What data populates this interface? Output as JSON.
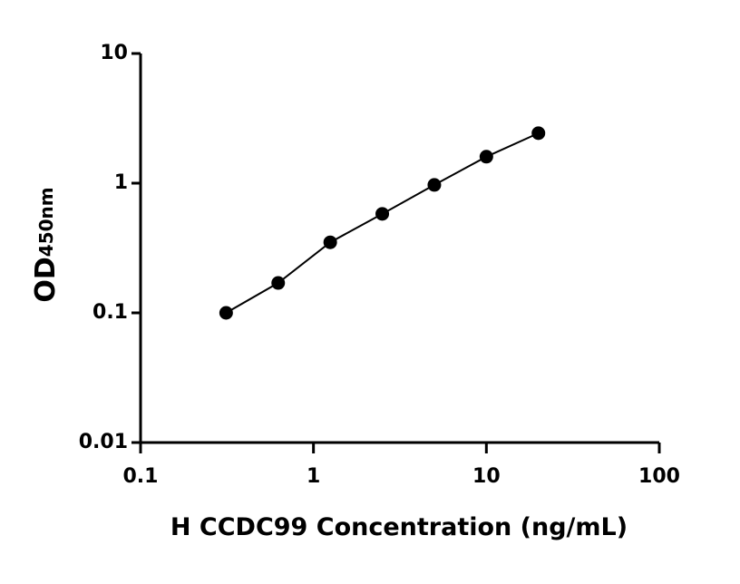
{
  "chart_data": {
    "type": "scatter",
    "x_label": "H CCDC99 Concentration (ng/mL)",
    "y_label": "OD",
    "y_label_sub": "450nm",
    "x": [
      0.3125,
      0.625,
      1.25,
      2.5,
      5,
      10,
      20
    ],
    "values": [
      0.1,
      0.17,
      0.35,
      0.58,
      0.97,
      1.6,
      2.43
    ],
    "color": "#000000",
    "xscale": "log",
    "yscale": "log",
    "xlim": [
      0.1,
      100
    ],
    "ylim": [
      0.01,
      10
    ],
    "xticks": [
      0.1,
      1,
      10,
      100
    ],
    "yticks": [
      0.01,
      0.1,
      1,
      10
    ]
  }
}
